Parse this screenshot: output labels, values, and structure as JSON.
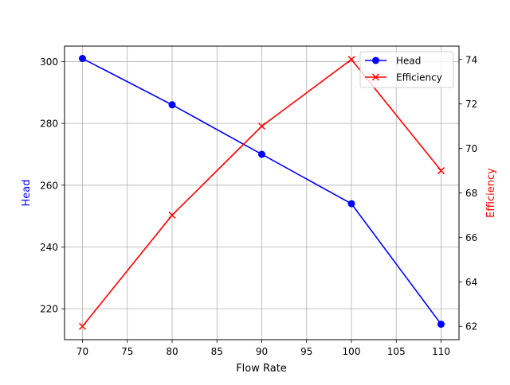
{
  "chart_data": {
    "type": "line",
    "title": "",
    "xlabel": "Flow Rate",
    "x": [
      70,
      80,
      90,
      100,
      110
    ],
    "xticks": [
      70,
      75,
      80,
      85,
      90,
      95,
      100,
      105,
      110
    ],
    "xlim": [
      68,
      112
    ],
    "grid": true,
    "legend_position": "upper right",
    "series": [
      {
        "name": "Head",
        "axis": "left",
        "color": "#0000ff",
        "marker": "circle",
        "values": [
          301,
          286,
          270,
          254,
          215
        ]
      },
      {
        "name": "Efficiency",
        "axis": "right",
        "color": "#ff0000",
        "marker": "x",
        "values": [
          62,
          67,
          71,
          74,
          69
        ]
      }
    ],
    "left_axis": {
      "label": "Head",
      "label_color": "#0000ff",
      "ticks": [
        220,
        240,
        260,
        280,
        300
      ],
      "ylim": [
        210,
        305
      ]
    },
    "right_axis": {
      "label": "Efficiency",
      "label_color": "#ff0000",
      "ticks": [
        62,
        64,
        66,
        68,
        70,
        72,
        74
      ],
      "ylim": [
        61.4,
        74.6
      ]
    }
  }
}
